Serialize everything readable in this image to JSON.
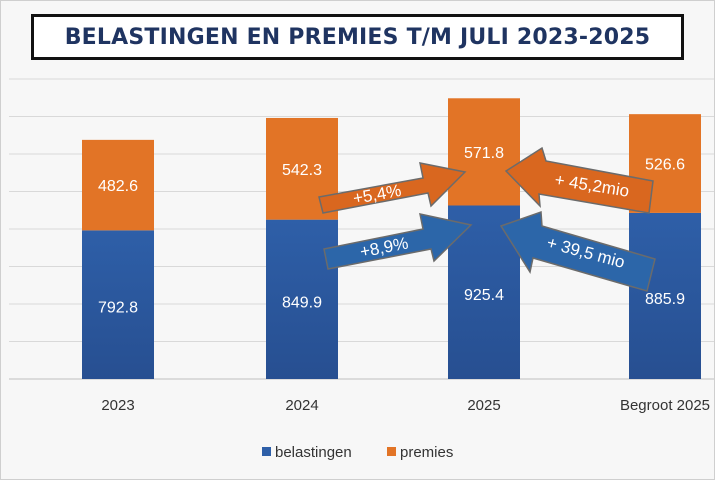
{
  "title": "BELASTINGEN EN PREMIES T/M JULI 2023-2025",
  "colors": {
    "belastingen": "#2e5fa8",
    "belastingen_dark": "#274f91",
    "premies": "#e27426",
    "arrow_orange": "#d9671f",
    "arrow_blue": "#2c66a9",
    "gridline": "#d9d9d9",
    "title_text": "#1f3461"
  },
  "chart_data": {
    "type": "bar",
    "stacked": true,
    "title": "BELASTINGEN EN PREMIES T/M JULI 2023-2025",
    "categories": [
      "2023",
      "2024",
      "2025",
      "Begroot 2025"
    ],
    "series": [
      {
        "name": "belastingen",
        "values": [
          792.8,
          849.9,
          925.4,
          885.9
        ]
      },
      {
        "name": "premies",
        "values": [
          482.6,
          542.3,
          571.8,
          526.6
        ]
      }
    ],
    "ylim": [
      0,
      1600
    ],
    "ytick_step": 200,
    "grid": true,
    "legend": "bottom",
    "xlabel": "",
    "ylabel": "",
    "annotations": {
      "premies_growth": "+5,4%",
      "belastingen_growth": "+8,9%",
      "premies_vs_budget": "+ 45,2mio",
      "belastingen_vs_budget": "+ 39,5 mio"
    }
  }
}
